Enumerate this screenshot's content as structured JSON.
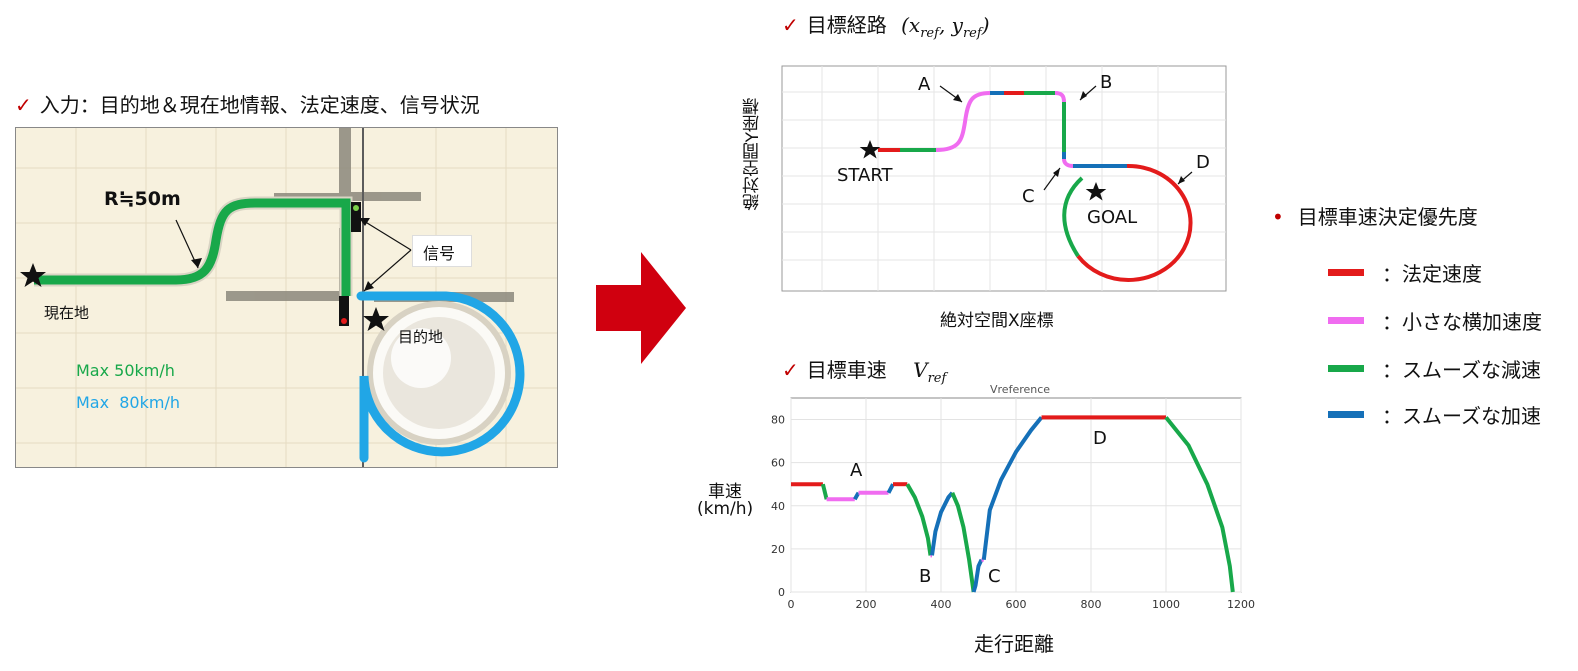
{
  "left": {
    "heading": "入力：目的地＆現在地情報、法定速度、信号状況",
    "radius_label": "R≒50m",
    "signal_label": "信号",
    "current_label": "現在地",
    "destination_label": "目的地",
    "max_green": "Max 50km/h",
    "max_blue": "Max  80km/h"
  },
  "colors": {
    "legal": "#e31b1b",
    "small_lateral": "#f06cf0",
    "smooth_decel": "#18a84a",
    "smooth_accel": "#1570b8",
    "route_blue": "#21a6e6",
    "arrow": "#d0000f",
    "check": "#c00000"
  },
  "top_right": {
    "heading": "目標経路",
    "math": "(x_ref, y_ref)",
    "ylabel": "絶対空間Y座標",
    "xlabel": "絶対空間X座標",
    "start_label": "START",
    "goal_label": "GOAL",
    "markers": [
      "A",
      "B",
      "C",
      "D"
    ]
  },
  "bottom_right": {
    "heading": "目標車速",
    "math": "V_ref",
    "ylabel_1": "車速",
    "ylabel_2": "(km/h)",
    "xlabel": "走行距離",
    "chart_title_partial": "Vreference"
  },
  "priority": {
    "title": "目標車速決定優先度",
    "items": [
      {
        "label": "：法定速度",
        "color": "#e31b1b"
      },
      {
        "label": "：小さな横加速度",
        "color": "#f06cf0"
      },
      {
        "label": "：スムーズな減速",
        "color": "#18a84a"
      },
      {
        "label": "：スムーズな加速",
        "color": "#1570b8"
      }
    ]
  },
  "chart_data": [
    {
      "type": "line",
      "title": "",
      "xlabel": "走行距離",
      "ylabel": "車速 (km/h)",
      "xlim": [
        0,
        1200
      ],
      "ylim": [
        0,
        90
      ],
      "xticks": [
        0,
        200,
        400,
        600,
        800,
        1000,
        1200
      ],
      "yticks": [
        0,
        20,
        40,
        60,
        80
      ],
      "grid": true,
      "annotations": [
        {
          "text": "A",
          "x": 180,
          "y": 55
        },
        {
          "text": "B",
          "x": 365,
          "y": 5
        },
        {
          "text": "C",
          "x": 525,
          "y": 5
        },
        {
          "text": "D",
          "x": 825,
          "y": 72
        }
      ],
      "segments": [
        {
          "kind": "法定速度",
          "color": "#e31b1b",
          "points": [
            [
              0,
              50
            ],
            [
              85,
              50
            ]
          ]
        },
        {
          "kind": "スムーズな減速",
          "color": "#18a84a",
          "points": [
            [
              85,
              50
            ],
            [
              95,
              43
            ]
          ]
        },
        {
          "kind": "小さな横加速度",
          "color": "#f06cf0",
          "points": [
            [
              95,
              43
            ],
            [
              170,
              43
            ]
          ]
        },
        {
          "kind": "スムーズな加速",
          "color": "#1570b8",
          "points": [
            [
              170,
              43
            ],
            [
              180,
              46
            ]
          ]
        },
        {
          "kind": "小さな横加速度",
          "color": "#f06cf0",
          "points": [
            [
              180,
              46
            ],
            [
              260,
              46
            ]
          ]
        },
        {
          "kind": "スムーズな加速",
          "color": "#1570b8",
          "points": [
            [
              260,
              46
            ],
            [
              272,
              50
            ]
          ]
        },
        {
          "kind": "法定速度",
          "color": "#e31b1b",
          "points": [
            [
              272,
              50
            ],
            [
              310,
              50
            ]
          ]
        },
        {
          "kind": "スムーズな減速",
          "color": "#18a84a",
          "points": [
            [
              310,
              50
            ],
            [
              330,
              44
            ],
            [
              350,
              35
            ],
            [
              365,
              25
            ],
            [
              372,
              17
            ]
          ]
        },
        {
          "kind": "小さな横加速度",
          "color": "#f06cf0",
          "points": [
            [
              372,
              17
            ],
            [
              376,
              17
            ]
          ]
        },
        {
          "kind": "スムーズな加速",
          "color": "#1570b8",
          "points": [
            [
              376,
              17
            ],
            [
              385,
              28
            ],
            [
              400,
              37
            ],
            [
              420,
              44
            ],
            [
              430,
              46
            ]
          ]
        },
        {
          "kind": "スムーズな減速",
          "color": "#18a84a",
          "points": [
            [
              430,
              46
            ],
            [
              445,
              40
            ],
            [
              460,
              30
            ],
            [
              475,
              15
            ],
            [
              487,
              0
            ]
          ]
        },
        {
          "kind": "スムーズな加速",
          "color": "#1570b8",
          "points": [
            [
              487,
              0
            ],
            [
              492,
              3
            ],
            [
              500,
              12
            ],
            [
              508,
              15
            ]
          ]
        },
        {
          "kind": "小さな横加速度",
          "color": "#f06cf0",
          "points": [
            [
              508,
              15
            ],
            [
              514,
              15
            ]
          ]
        },
        {
          "kind": "スムーズな加速",
          "color": "#1570b8",
          "points": [
            [
              514,
              15
            ],
            [
              530,
              38
            ],
            [
              560,
              52
            ],
            [
              600,
              65
            ],
            [
              640,
              75
            ],
            [
              668,
              81
            ]
          ]
        },
        {
          "kind": "法定速度",
          "color": "#e31b1b",
          "points": [
            [
              668,
              81
            ],
            [
              1000,
              81
            ]
          ]
        },
        {
          "kind": "スムーズな減速",
          "color": "#18a84a",
          "points": [
            [
              1000,
              81
            ],
            [
              1060,
              68
            ],
            [
              1110,
              50
            ],
            [
              1150,
              30
            ],
            [
              1170,
              12
            ],
            [
              1178,
              0
            ]
          ]
        }
      ]
    },
    {
      "type": "line",
      "title": "",
      "xlabel": "絶対空間X座標",
      "ylabel": "絶対空間Y座標",
      "grid": true,
      "annotations": [
        {
          "text": "START"
        },
        {
          "text": "GOAL"
        },
        {
          "text": "A"
        },
        {
          "text": "B"
        },
        {
          "text": "C"
        },
        {
          "text": "D"
        }
      ]
    }
  ]
}
